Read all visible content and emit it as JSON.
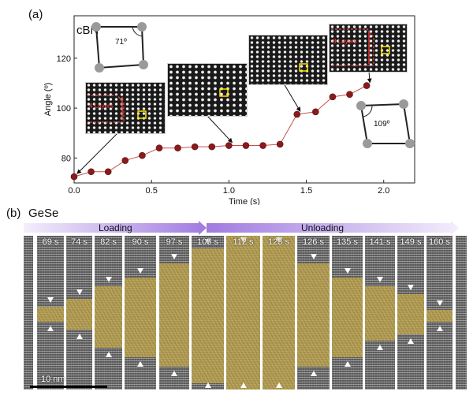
{
  "panel_a": {
    "label": "(a)",
    "material": "cBN",
    "angle_start": "71º",
    "angle_end": "109º",
    "inset_label_left": "4 Layers",
    "inset_label_right": "8 Layers"
  },
  "panel_b": {
    "label": "(b)",
    "material": "GeSe",
    "loading": "Loading",
    "unloading": "Unloading",
    "scale_bar": "10 nm",
    "frames": [
      {
        "time": "",
        "yellow": [
          0,
          0
        ]
      },
      {
        "time": "69 s",
        "yellow": [
          0.46,
          0.56
        ]
      },
      {
        "time": "74 s",
        "yellow": [
          0.41,
          0.61
        ]
      },
      {
        "time": "82 s",
        "yellow": [
          0.33,
          0.73
        ]
      },
      {
        "time": "90 s",
        "yellow": [
          0.27,
          0.79
        ]
      },
      {
        "time": "97 s",
        "yellow": [
          0.18,
          0.85
        ]
      },
      {
        "time": "105 s",
        "yellow": [
          0.08,
          0.96
        ]
      },
      {
        "time": "112 s",
        "yellow": [
          0.0,
          1.0
        ]
      },
      {
        "time": "123 s",
        "yellow": [
          0.0,
          1.0
        ]
      },
      {
        "time": "126 s",
        "yellow": [
          0.18,
          0.85
        ]
      },
      {
        "time": "135 s",
        "yellow": [
          0.27,
          0.79
        ]
      },
      {
        "time": "141 s",
        "yellow": [
          0.33,
          0.68
        ]
      },
      {
        "time": "149 s",
        "yellow": [
          0.38,
          0.64
        ]
      },
      {
        "time": "160 s",
        "yellow": [
          0.48,
          0.56
        ]
      },
      {
        "time": "",
        "yellow": [
          0,
          0
        ]
      }
    ]
  },
  "chart_data": {
    "type": "scatter",
    "xlabel": "Time (s)",
    "ylabel": "Angle (º)",
    "xlim": [
      0.0,
      2.2
    ],
    "ylim": [
      70,
      137
    ],
    "xticks": [
      "0.0",
      "0.5",
      "1.0",
      "1.5",
      "2.0"
    ],
    "yticks": [
      "80",
      "100",
      "120"
    ],
    "series": [
      {
        "color": "#8b1a1a",
        "x": [
          0.0,
          0.11,
          0.22,
          0.33,
          0.44,
          0.55,
          0.67,
          0.78,
          0.89,
          1.0,
          1.11,
          1.22,
          1.33,
          1.44,
          1.56,
          1.67,
          1.78,
          1.89
        ],
        "y": [
          72.5,
          74.5,
          74.5,
          79,
          81,
          84,
          84,
          84.5,
          84.5,
          85,
          85,
          85,
          85.5,
          97.5,
          98.5,
          104.5,
          105.5,
          109
        ]
      }
    ]
  }
}
